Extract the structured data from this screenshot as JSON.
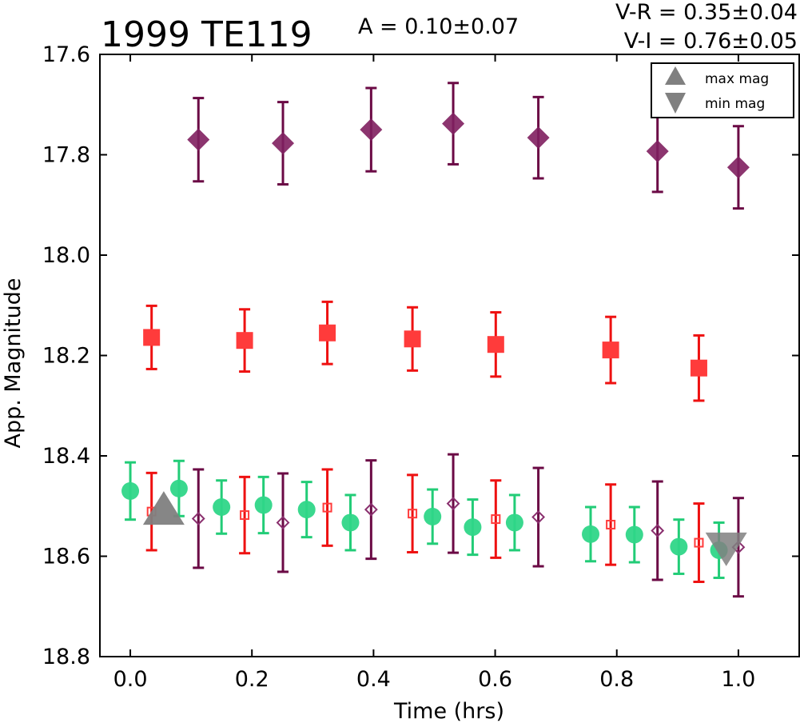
{
  "chart_data": {
    "type": "scatter",
    "title": "1999 TE119",
    "amplitude_label": "A  = 0.10±0.07",
    "colors_label_1": "V-R = 0.35±0.04",
    "colors_label_2": "V-I  = 0.76±0.05",
    "xlabel": "Time (hrs)",
    "ylabel": "App. Magnitude",
    "xlim": [
      -0.05,
      1.1
    ],
    "ylim": [
      18.8,
      17.6
    ],
    "y_inverted": true,
    "xticks": [
      "0.0",
      "0.2",
      "0.4",
      "0.6",
      "0.8",
      "1.0"
    ],
    "yticks": [
      "17.6",
      "17.8",
      "18.0",
      "18.2",
      "18.4",
      "18.6",
      "18.8"
    ],
    "grid": false,
    "legend": {
      "placement": "top-right",
      "entries": [
        {
          "label": "max mag",
          "marker": "triangle-up",
          "color": "#808080"
        },
        {
          "label": "min mag",
          "marker": "triangle-down",
          "color": "#808080"
        }
      ]
    },
    "markers": {
      "max_mag": {
        "x": 0.055,
        "y": 18.515,
        "color": "#808080"
      },
      "min_mag": {
        "x": 0.98,
        "y": 18.575,
        "color": "#808080"
      }
    },
    "series": [
      {
        "marker": "diamond-filled",
        "color": "#7f1f5f",
        "errcolor": "#6b0a45",
        "points": [
          {
            "x": 0.112,
            "y": 17.77,
            "err": 0.083
          },
          {
            "x": 0.251,
            "y": 17.777,
            "err": 0.082
          },
          {
            "x": 0.396,
            "y": 17.75,
            "err": 0.083
          },
          {
            "x": 0.531,
            "y": 17.738,
            "err": 0.081
          },
          {
            "x": 0.671,
            "y": 17.766,
            "err": 0.081
          },
          {
            "x": 0.867,
            "y": 17.793,
            "err": 0.081
          },
          {
            "x": 1.0,
            "y": 17.825,
            "err": 0.082
          }
        ]
      },
      {
        "marker": "square-filled",
        "color": "#ff3b3b",
        "errcolor": "#ee1111",
        "points": [
          {
            "x": 0.035,
            "y": 18.164,
            "err": 0.063
          },
          {
            "x": 0.188,
            "y": 18.17,
            "err": 0.062
          },
          {
            "x": 0.324,
            "y": 18.155,
            "err": 0.062
          },
          {
            "x": 0.464,
            "y": 18.167,
            "err": 0.063
          },
          {
            "x": 0.601,
            "y": 18.178,
            "err": 0.064
          },
          {
            "x": 0.79,
            "y": 18.189,
            "err": 0.066
          },
          {
            "x": 0.935,
            "y": 18.225,
            "err": 0.065
          }
        ]
      },
      {
        "marker": "circle-filled",
        "color": "#2fd688",
        "errcolor": "#22cc77",
        "points": [
          {
            "x": 0.0,
            "y": 18.47,
            "err": 0.057
          },
          {
            "x": 0.08,
            "y": 18.465,
            "err": 0.055
          },
          {
            "x": 0.15,
            "y": 18.502,
            "err": 0.053
          },
          {
            "x": 0.219,
            "y": 18.498,
            "err": 0.056
          },
          {
            "x": 0.29,
            "y": 18.507,
            "err": 0.055
          },
          {
            "x": 0.362,
            "y": 18.533,
            "err": 0.055
          },
          {
            "x": 0.497,
            "y": 18.521,
            "err": 0.054
          },
          {
            "x": 0.563,
            "y": 18.542,
            "err": 0.055
          },
          {
            "x": 0.632,
            "y": 18.533,
            "err": 0.055
          },
          {
            "x": 0.757,
            "y": 18.556,
            "err": 0.054
          },
          {
            "x": 0.829,
            "y": 18.557,
            "err": 0.055
          },
          {
            "x": 0.902,
            "y": 18.581,
            "err": 0.054
          },
          {
            "x": 0.968,
            "y": 18.588,
            "err": 0.055
          }
        ]
      },
      {
        "marker": "square-open",
        "color": "#ff3b3b",
        "errcolor": "#ee1111",
        "points": [
          {
            "x": 0.035,
            "y": 18.511,
            "err": 0.077
          },
          {
            "x": 0.188,
            "y": 18.518,
            "err": 0.076
          },
          {
            "x": 0.324,
            "y": 18.503,
            "err": 0.076
          },
          {
            "x": 0.464,
            "y": 18.515,
            "err": 0.077
          },
          {
            "x": 0.601,
            "y": 18.526,
            "err": 0.077
          },
          {
            "x": 0.79,
            "y": 18.537,
            "err": 0.08
          },
          {
            "x": 0.935,
            "y": 18.573,
            "err": 0.078
          }
        ]
      },
      {
        "marker": "diamond-open",
        "color": "#8a2f6e",
        "errcolor": "#6b0a45",
        "points": [
          {
            "x": 0.112,
            "y": 18.525,
            "err": 0.098
          },
          {
            "x": 0.251,
            "y": 18.533,
            "err": 0.098
          },
          {
            "x": 0.396,
            "y": 18.507,
            "err": 0.098
          },
          {
            "x": 0.531,
            "y": 18.495,
            "err": 0.098
          },
          {
            "x": 0.671,
            "y": 18.522,
            "err": 0.098
          },
          {
            "x": 0.867,
            "y": 18.549,
            "err": 0.098
          },
          {
            "x": 1.0,
            "y": 18.582,
            "err": 0.098
          }
        ]
      }
    ]
  }
}
